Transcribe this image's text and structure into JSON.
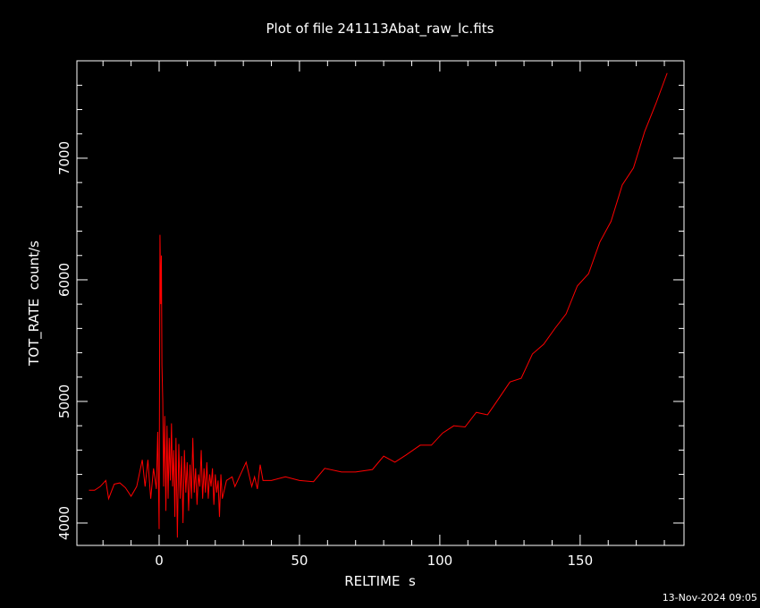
{
  "chart_data": {
    "type": "line",
    "title": "Plot of file 241113Abat_raw_lc.fits",
    "x_label": "RELTIME  s",
    "y_label": "TOT_RATE  count/s",
    "footer": "13-Nov-2024 09:05",
    "xlim": [
      -29.3,
      187
    ],
    "ylim": [
      3816,
      7801
    ],
    "xticks": [
      0,
      50,
      100,
      150
    ],
    "yticks": [
      4000,
      5000,
      6000,
      7000
    ],
    "xminorticks": [
      -20,
      -10,
      10,
      20,
      30,
      40,
      60,
      70,
      80,
      90,
      110,
      120,
      130,
      140,
      160,
      170,
      180
    ],
    "yminorticks": [
      4200,
      4400,
      4600,
      4800,
      5200,
      5400,
      5600,
      5800,
      6200,
      6400,
      6600,
      6800,
      7200,
      7400,
      7600
    ],
    "color": "#ff0000",
    "x": [
      -25,
      -23,
      -21,
      -19,
      -18,
      -16,
      -14,
      -12,
      -10,
      -8,
      -6,
      -5,
      -4,
      -3,
      -2,
      -1,
      -0.5,
      0,
      0.3,
      0.6,
      0.8,
      1.0,
      1.3,
      1.6,
      2,
      2.4,
      2.8,
      3.2,
      3.6,
      4,
      4.4,
      4.8,
      5.2,
      5.6,
      6,
      6.5,
      7,
      7.5,
      8,
      8.5,
      9,
      9.5,
      10,
      10.5,
      11,
      11.5,
      12,
      12.5,
      13,
      13.5,
      14,
      14.5,
      15,
      15.5,
      16,
      16.5,
      17,
      17.5,
      18,
      18.5,
      19,
      19.5,
      20,
      20.5,
      21,
      21.5,
      22,
      22.5,
      24,
      26,
      27,
      29,
      31,
      33,
      34,
      35,
      36,
      37,
      40,
      45,
      50,
      55,
      59,
      65,
      70,
      76,
      80,
      84,
      88,
      93,
      97,
      101,
      105,
      109,
      113,
      117,
      120,
      125,
      129,
      133,
      137,
      141,
      145,
      149,
      153,
      157,
      161,
      165,
      169,
      173,
      177,
      181
    ],
    "values": [
      4270,
      4270,
      4300,
      4350,
      4200,
      4320,
      4330,
      4290,
      4220,
      4300,
      4520,
      4300,
      4520,
      4200,
      4450,
      4280,
      4750,
      3950,
      6370,
      5800,
      6200,
      5300,
      5000,
      4300,
      4880,
      4100,
      4800,
      4200,
      4700,
      4350,
      4820,
      4300,
      4600,
      4050,
      4700,
      3880,
      4650,
      4200,
      4550,
      4000,
      4600,
      4250,
      4500,
      4100,
      4480,
      4200,
      4700,
      4250,
      4450,
      4150,
      4400,
      4300,
      4600,
      4200,
      4450,
      4250,
      4500,
      4200,
      4400,
      4300,
      4450,
      4150,
      4400,
      4250,
      4350,
      4050,
      4400,
      4200,
      4350,
      4380,
      4300,
      4400,
      4500,
      4300,
      4380,
      4280,
      4480,
      4350,
      4350,
      4380,
      4350,
      4340,
      4450,
      4420,
      4420,
      4440,
      4550,
      4500,
      4560,
      4640,
      4640,
      4740,
      4800,
      4790,
      4910,
      4890,
      4990,
      5160,
      5190,
      5390,
      5470,
      5600,
      5720,
      5950,
      6050,
      6310,
      6480,
      6780,
      6920,
      7220,
      7450,
      7700
    ]
  }
}
